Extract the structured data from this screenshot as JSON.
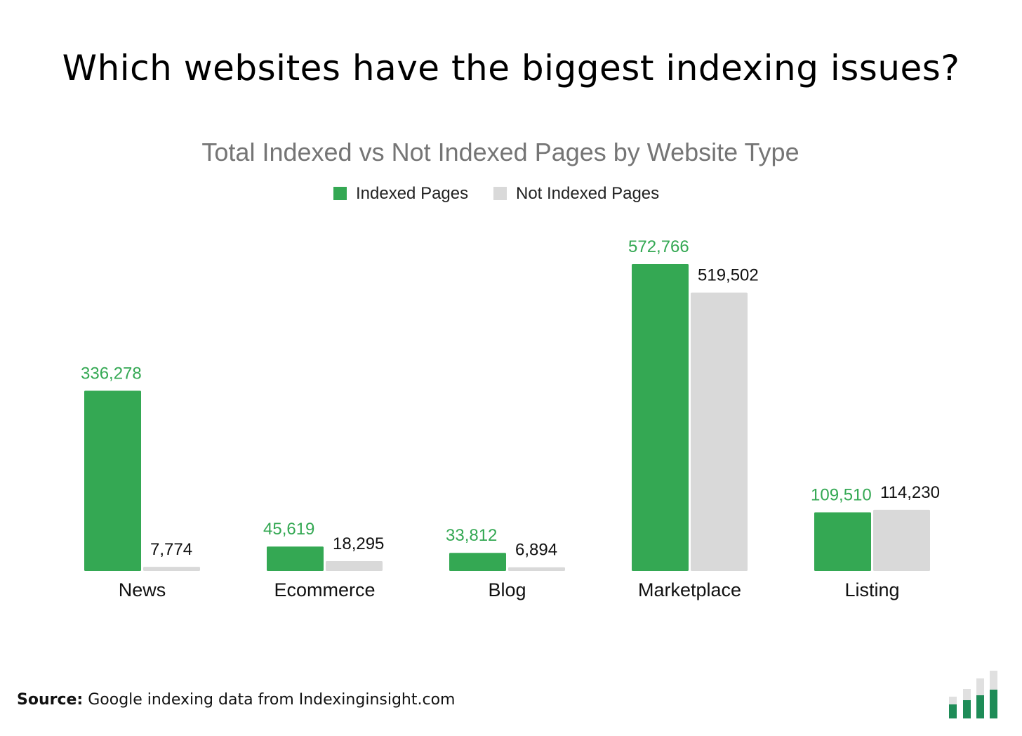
{
  "headline": "Which websites have the biggest indexing issues?",
  "source": {
    "label": "Source:",
    "text": "Google indexing data from Indexinginsight.com"
  },
  "colors": {
    "indexed": "#34a853",
    "not_indexed": "#d9d9d9",
    "title": "#757575",
    "logo_green": "#1e8c57",
    "logo_grey": "#e0e0e0"
  },
  "chart_data": {
    "type": "bar",
    "title": "Total Indexed vs Not Indexed Pages by Website Type",
    "xlabel": "",
    "ylabel": "",
    "ylim": [
      0,
      600000
    ],
    "grid": false,
    "legend_position": "top-center",
    "categories": [
      "News",
      "Ecommerce",
      "Blog",
      "Marketplace",
      "Listing"
    ],
    "series": [
      {
        "name": "Indexed Pages",
        "values": [
          336278,
          45619,
          33812,
          572766,
          109510
        ],
        "labels": [
          "336,278",
          "45,619",
          "33,812",
          "572,766",
          "109,510"
        ]
      },
      {
        "name": "Not Indexed Pages",
        "values": [
          7774,
          18295,
          6894,
          519502,
          114230
        ],
        "labels": [
          "7,774",
          "18,295",
          "6,894",
          "519,502",
          "114,230"
        ]
      }
    ]
  }
}
